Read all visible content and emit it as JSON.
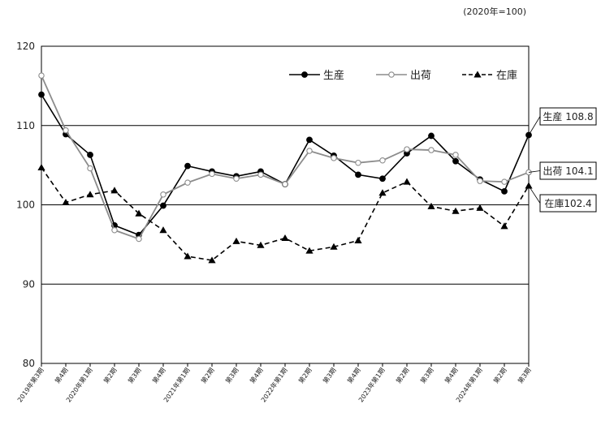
{
  "unit_note": "(2020年=100)",
  "chart_data": {
    "type": "line",
    "title": "",
    "xlabel": "",
    "ylabel": "",
    "ylim": [
      80,
      120
    ],
    "yticks": [
      80,
      90,
      100,
      110,
      120
    ],
    "grid": "horizontal",
    "legend_position": "top-right",
    "categories": [
      "2019年第3期",
      "第4期",
      "2020年第1期",
      "第2期",
      "第3期",
      "第4期",
      "2021年第1期",
      "第2期",
      "第3期",
      "第4期",
      "2022年第1期",
      "第2期",
      "第3期",
      "第4期",
      "2023年第1期",
      "第2期",
      "第3期",
      "第4期",
      "2024年第1期",
      "第2期",
      "第3期"
    ],
    "series": [
      {
        "name": "生産",
        "style": "solid-filled-circle",
        "color": "#000000",
        "values": [
          113.9,
          108.9,
          106.3,
          97.4,
          96.2,
          99.9,
          104.9,
          104.2,
          103.6,
          104.2,
          102.6,
          108.2,
          106.2,
          103.8,
          103.3,
          106.5,
          108.7,
          105.5,
          103.2,
          101.7,
          108.8
        ],
        "end_label": "生産 108.8"
      },
      {
        "name": "出荷",
        "style": "solid-open-circle",
        "color": "#8c8c8c",
        "values": [
          116.3,
          109.4,
          104.6,
          96.8,
          95.7,
          101.3,
          102.8,
          103.9,
          103.3,
          103.8,
          102.6,
          106.8,
          105.9,
          105.3,
          105.6,
          107.0,
          106.9,
          106.3,
          103.0,
          102.9,
          104.1
        ],
        "end_label": "出荷 104.1"
      },
      {
        "name": "在庫",
        "style": "dashed-filled-triangle",
        "color": "#000000",
        "values": [
          104.7,
          100.3,
          101.3,
          101.8,
          98.9,
          96.8,
          93.5,
          93.0,
          95.4,
          94.9,
          95.8,
          94.2,
          94.7,
          95.5,
          101.5,
          102.9,
          99.8,
          99.2,
          99.6,
          97.3,
          102.4
        ],
        "end_label": "在庫102.4"
      }
    ]
  },
  "colors": {
    "grid": "#000000",
    "axis": "#000000",
    "callout_border": "#000000"
  }
}
